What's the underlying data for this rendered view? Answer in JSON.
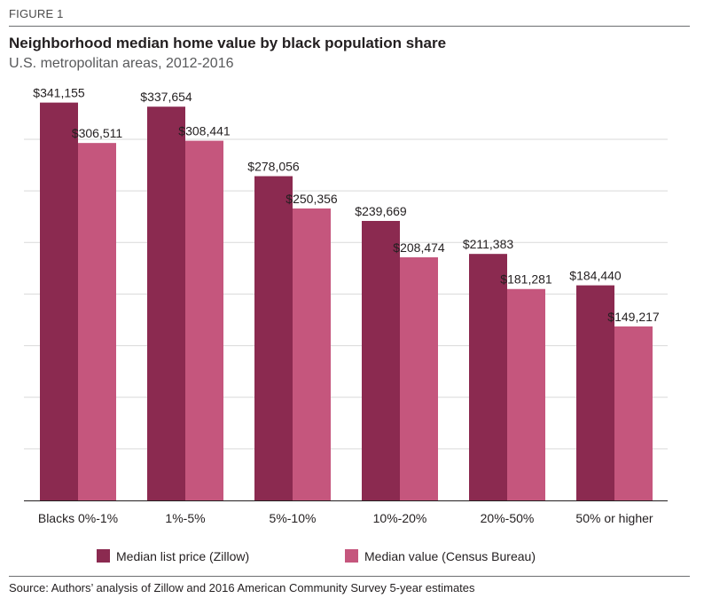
{
  "figure_label": "FIGURE 1",
  "title": "Neighborhood median home value by black population share",
  "subtitle": "U.S. metropolitan areas, 2012-2016",
  "source": "Source: Authors’ analysis of Zillow and 2016 American Community Survey 5-year estimates",
  "colors": {
    "zillow": "#8b2a50",
    "census": "#c5567d",
    "grid": "#d9d9d9",
    "axis": "#231f20"
  },
  "chart_data": {
    "type": "bar",
    "title": "Neighborhood median home value by black population share",
    "subtitle": "U.S. metropolitan areas, 2012-2016",
    "xlabel": "",
    "ylabel": "",
    "ylim": [
      0,
      350000
    ],
    "grid": true,
    "legend_position": "bottom",
    "categories": [
      "Blacks 0%-1%",
      "1%-5%",
      "5%-10%",
      "10%-20%",
      "20%-50%",
      "50% or higher"
    ],
    "series": [
      {
        "name": "Median list price (Zillow)",
        "color": "#8b2a50",
        "values": [
          341155,
          337654,
          278056,
          239669,
          211383,
          184440
        ],
        "labels": [
          "$341,155",
          "$337,654",
          "$278,056",
          "$239,669",
          "$211,383",
          "$184,440"
        ]
      },
      {
        "name": "Median value (Census Bureau)",
        "color": "#c5567d",
        "values": [
          306511,
          308441,
          250356,
          208474,
          181281,
          149217
        ],
        "labels": [
          "$306,511",
          "$308,441",
          "$250,356",
          "$208,474",
          "$181,281",
          "$149,217"
        ]
      }
    ]
  }
}
